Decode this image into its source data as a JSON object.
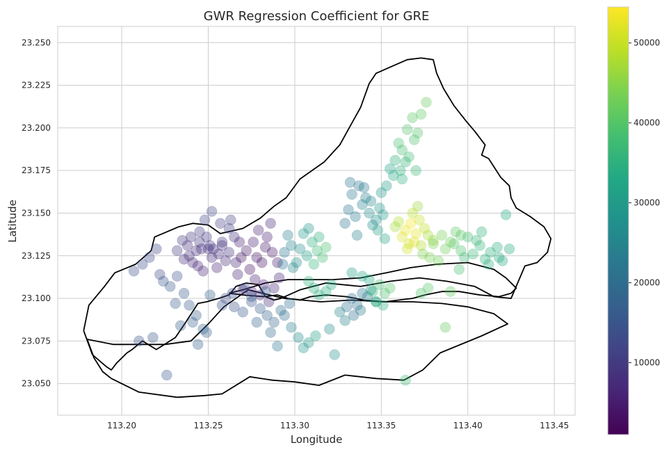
{
  "chart_data": {
    "type": "scatter",
    "title": "GWR Regression Coefficient for GRE",
    "xlabel": "Longitude",
    "ylabel": "Latitude",
    "xlim": [
      113.163,
      113.462
    ],
    "ylim": [
      23.0315,
      23.2595
    ],
    "xticks": [
      "113.20",
      "113.25",
      "113.30",
      "113.35",
      "113.40",
      "113.45"
    ],
    "yticks": [
      "23.050",
      "23.075",
      "23.100",
      "23.125",
      "23.150",
      "23.175",
      "23.200",
      "23.225",
      "23.250"
    ],
    "grid": true,
    "colorbar": {
      "colormap": "viridis",
      "range": [
        1000,
        54500
      ],
      "ticks": [
        "10000",
        "20000",
        "30000",
        "40000",
        "50000"
      ]
    },
    "boundaries": [
      {
        "name": "outer",
        "lon": [
          113.178,
          113.183,
          113.191,
          113.194,
          113.197,
          113.203,
          113.206,
          113.212,
          113.22,
          113.231,
          113.237,
          113.244,
          113.249,
          113.256,
          113.262,
          113.266,
          113.272,
          113.279,
          113.283,
          113.288,
          113.292,
          113.303,
          113.318,
          113.338,
          113.355,
          113.372,
          113.388,
          113.404,
          113.415,
          113.425,
          113.433,
          113.44,
          113.446,
          113.448,
          113.444,
          113.436,
          113.428,
          113.425,
          113.424,
          113.419,
          113.412,
          113.408,
          113.41,
          113.404,
          113.399,
          113.392,
          113.386,
          113.382,
          113.38,
          113.373,
          113.365,
          113.356,
          113.347,
          113.343,
          113.338,
          113.332,
          113.326,
          113.317,
          113.303,
          113.295,
          113.288,
          113.28,
          113.27,
          113.257,
          113.25,
          113.241,
          113.233,
          113.226,
          113.219,
          113.217,
          113.208,
          113.196,
          113.19,
          113.181,
          113.178
        ],
        "lat": [
          23.081,
          23.067,
          23.06,
          23.058,
          23.062,
          23.068,
          23.07,
          23.075,
          23.07,
          23.077,
          23.086,
          23.097,
          23.098,
          23.1,
          23.102,
          23.107,
          23.109,
          23.108,
          23.101,
          23.099,
          23.1,
          23.105,
          23.109,
          23.107,
          23.11,
          23.112,
          23.11,
          23.107,
          23.101,
          23.1,
          23.119,
          23.121,
          23.127,
          23.135,
          23.142,
          23.148,
          23.153,
          23.159,
          23.166,
          23.171,
          23.182,
          23.184,
          23.19,
          23.198,
          23.204,
          23.213,
          23.223,
          23.232,
          23.24,
          23.241,
          23.24,
          23.236,
          23.232,
          23.226,
          23.212,
          23.201,
          23.19,
          23.18,
          23.17,
          23.159,
          23.154,
          23.147,
          23.141,
          23.138,
          23.143,
          23.144,
          23.142,
          23.139,
          23.136,
          23.128,
          23.12,
          23.115,
          23.107,
          23.096,
          23.081
        ]
      },
      {
        "name": "south",
        "lon": [
          113.18,
          113.184,
          113.189,
          113.194,
          113.21,
          113.232,
          113.248,
          113.258,
          113.274,
          113.287,
          113.3,
          113.314,
          113.329,
          113.347,
          113.363,
          113.374,
          113.384,
          113.408,
          113.423,
          113.415,
          113.4,
          113.385,
          113.368,
          113.351,
          113.333,
          113.315,
          113.294,
          113.273,
          113.259,
          113.25,
          113.24,
          113.225,
          113.208,
          113.195,
          113.18
        ],
        "lat": [
          23.076,
          23.065,
          23.057,
          23.053,
          23.045,
          23.042,
          23.043,
          23.044,
          23.054,
          23.052,
          23.051,
          23.049,
          23.055,
          23.053,
          23.052,
          23.058,
          23.068,
          23.078,
          23.085,
          23.091,
          23.095,
          23.097,
          23.098,
          23.098,
          23.099,
          23.098,
          23.1,
          23.105,
          23.095,
          23.085,
          23.075,
          23.073,
          23.073,
          23.073,
          23.076
        ]
      },
      {
        "name": "inner",
        "lon": [
          113.262,
          113.27,
          113.283,
          113.296,
          113.309,
          113.322,
          113.338,
          113.353,
          113.367,
          113.382,
          113.4,
          113.415,
          113.422,
          113.428,
          113.425,
          113.418,
          113.407,
          113.395,
          113.385,
          113.375,
          113.368,
          113.36,
          113.352,
          113.34,
          113.33,
          113.318,
          113.309,
          113.303,
          113.296,
          113.29,
          113.282,
          113.27,
          113.262
        ],
        "lat": [
          23.103,
          23.105,
          23.109,
          23.111,
          23.111,
          23.111,
          23.112,
          23.115,
          23.118,
          23.12,
          23.121,
          23.117,
          23.112,
          23.106,
          23.103,
          23.101,
          23.102,
          23.104,
          23.104,
          23.102,
          23.1,
          23.099,
          23.098,
          23.099,
          23.101,
          23.102,
          23.101,
          23.099,
          23.1,
          23.102,
          23.101,
          23.102,
          23.103
        ]
      }
    ],
    "series": [
      {
        "x": [
          113.246,
          113.252,
          113.258,
          113.262,
          113.249,
          113.255,
          113.241,
          113.245,
          113.251,
          113.26,
          113.257,
          113.248,
          113.243,
          113.253,
          113.265,
          113.238,
          113.236,
          113.244,
          113.256,
          113.262,
          113.24,
          113.247,
          113.252,
          113.258,
          113.25,
          113.245,
          113.235,
          113.232,
          113.266,
          113.263,
          113.239
        ],
        "y": [
          23.129,
          23.124,
          23.133,
          23.127,
          23.136,
          23.118,
          23.121,
          23.139,
          23.131,
          23.122,
          23.144,
          23.146,
          23.128,
          23.129,
          23.136,
          23.131,
          23.123,
          23.119,
          23.126,
          23.141,
          23.136,
          23.116,
          23.151,
          23.131,
          23.129,
          23.133,
          23.134,
          23.128,
          23.121,
          23.146,
          23.125
        ],
        "values": [
          8000,
          7500,
          9000,
          8500,
          10000,
          6500,
          7000,
          10500,
          9500,
          7800,
          11000,
          12000,
          8200,
          8800,
          9200,
          8600,
          7400,
          6800,
          8100,
          10200,
          9300,
          6600,
          12500,
          8900,
          8400,
          9100,
          9600,
          9800,
          7100,
          11200,
          8300
        ]
      },
      {
        "x": [
          113.272,
          113.278,
          113.283,
          113.287,
          113.276,
          113.281,
          113.269,
          113.284,
          113.29,
          113.274,
          113.279,
          113.286,
          113.268,
          113.282,
          113.277,
          113.291,
          113.27,
          113.288,
          113.275,
          113.285,
          113.28,
          113.267
        ],
        "y": [
          23.128,
          23.124,
          23.13,
          23.127,
          23.133,
          23.121,
          23.124,
          23.136,
          23.121,
          23.117,
          23.14,
          23.144,
          23.133,
          23.108,
          23.111,
          23.112,
          23.105,
          23.106,
          23.104,
          23.098,
          23.102,
          23.114
        ],
        "values": [
          4500,
          4000,
          5000,
          4800,
          5500,
          3800,
          4200,
          6000,
          5200,
          3600,
          6500,
          7000,
          5800,
          6200,
          6000,
          6600,
          6400,
          6800,
          6300,
          7200,
          6900,
          6100
        ]
      },
      {
        "x": [
          113.294,
          113.298,
          113.303,
          113.307,
          113.31,
          113.296,
          113.301,
          113.313,
          113.305,
          113.311,
          113.316,
          113.299,
          113.308,
          113.314,
          113.293,
          113.318
        ],
        "y": [
          23.127,
          23.131,
          23.129,
          23.125,
          23.133,
          23.137,
          23.121,
          23.128,
          23.138,
          23.12,
          23.124,
          23.118,
          23.141,
          23.136,
          23.12,
          23.13
        ],
        "values": [
          22000,
          25000,
          28000,
          31000,
          34000,
          24000,
          27000,
          37000,
          30000,
          36000,
          38000,
          26000,
          29000,
          35000,
          21000,
          39000
        ]
      },
      {
        "x": [
          113.26,
          113.265,
          113.27,
          113.275,
          113.28,
          113.284,
          113.288,
          113.292,
          113.297,
          113.264,
          113.271,
          113.278,
          113.286,
          113.29,
          113.298,
          113.302,
          113.305,
          113.308,
          113.312,
          113.258,
          113.275,
          113.283,
          113.294
        ],
        "y": [
          23.1,
          23.095,
          23.092,
          23.098,
          23.094,
          23.09,
          23.086,
          23.093,
          23.097,
          23.103,
          23.106,
          23.086,
          23.08,
          23.072,
          23.083,
          23.077,
          23.071,
          23.074,
          23.078,
          23.096,
          23.101,
          23.104,
          23.09
        ],
        "values": [
          13000,
          14000,
          15000,
          14500,
          16000,
          17000,
          18000,
          19000,
          20000,
          13500,
          14200,
          17500,
          19500,
          22000,
          24000,
          27000,
          28500,
          29500,
          30500,
          13800,
          15200,
          16800,
          20500
        ]
      },
      {
        "x": [
          113.331,
          113.335,
          113.339,
          113.343,
          113.347,
          113.351,
          113.333,
          113.337,
          113.341,
          113.345,
          113.349,
          113.329,
          113.336,
          113.344,
          113.34,
          113.332,
          113.348,
          113.352
        ],
        "y": [
          23.152,
          23.148,
          23.155,
          23.15,
          23.146,
          23.149,
          23.161,
          23.166,
          23.159,
          23.143,
          23.153,
          23.144,
          23.137,
          23.157,
          23.165,
          23.168,
          23.14,
          23.135
        ],
        "values": [
          22000,
          23000,
          24500,
          26000,
          28000,
          30000,
          22500,
          21500,
          23500,
          27000,
          29000,
          21000,
          24000,
          25500,
          23200,
          22200,
          31000,
          32000
        ]
      },
      {
        "x": [
          113.333,
          113.336,
          113.339,
          113.33,
          113.334,
          113.338,
          113.342,
          113.326,
          113.329,
          113.344,
          113.347,
          113.32,
          113.323
        ],
        "y": [
          23.1,
          23.096,
          23.103,
          23.095,
          23.09,
          23.093,
          23.101,
          23.092,
          23.087,
          23.105,
          23.098,
          23.082,
          23.067
        ],
        "values": [
          20000,
          21000,
          22000,
          21500,
          20500,
          23000,
          24000,
          25000,
          24500,
          28000,
          29500,
          27000,
          27500
        ]
      },
      {
        "x": [
          113.364,
          113.367,
          113.37,
          113.366,
          113.372,
          113.368,
          113.362,
          113.375,
          113.369,
          113.373,
          113.377,
          113.371,
          113.365,
          113.36,
          113.38,
          113.358
        ],
        "y": [
          23.14,
          23.144,
          23.138,
          23.132,
          23.146,
          23.15,
          23.136,
          23.141,
          23.133,
          23.131,
          23.137,
          23.154,
          23.129,
          23.145,
          23.134,
          23.142
        ],
        "values": [
          53000,
          54000,
          52500,
          51000,
          50000,
          49000,
          51500,
          49500,
          52000,
          48500,
          47500,
          46500,
          50500,
          48000,
          45500,
          47000
        ]
      },
      {
        "x": [
          113.392,
          113.396,
          113.4,
          113.403,
          113.407,
          113.41,
          113.413,
          113.417,
          113.42,
          113.424,
          113.398,
          113.405,
          113.412,
          113.418,
          113.422,
          113.395,
          113.408
        ],
        "y": [
          23.132,
          23.128,
          23.136,
          23.126,
          23.131,
          23.123,
          23.127,
          23.13,
          23.122,
          23.129,
          23.124,
          23.134,
          23.12,
          23.124,
          23.149,
          23.117,
          23.139
        ],
        "values": [
          40000,
          39000,
          38000,
          36500,
          36000,
          35000,
          34500,
          34000,
          33500,
          33000,
          37500,
          36200,
          34800,
          34200,
          33200,
          38500,
          35500
        ]
      },
      {
        "x": [
          113.353,
          113.357,
          113.361,
          113.364,
          113.366,
          113.362,
          113.36,
          113.369,
          113.371,
          113.373,
          113.376,
          113.368,
          113.365,
          113.37,
          113.358,
          113.355,
          113.362,
          113.35
        ],
        "y": [
          23.166,
          23.172,
          23.175,
          23.18,
          23.183,
          23.187,
          23.191,
          23.193,
          23.197,
          23.208,
          23.215,
          23.206,
          23.199,
          23.175,
          23.181,
          23.176,
          23.17,
          23.162
        ],
        "values": [
          30000,
          33000,
          35000,
          36000,
          37500,
          38000,
          38500,
          39000,
          40000,
          41000,
          41500,
          40500,
          39500,
          36500,
          34500,
          32000,
          34800,
          29000
        ]
      },
      {
        "x": [
          113.207,
          113.212,
          113.216,
          113.22,
          113.224,
          113.228,
          113.232,
          113.236,
          113.21,
          113.218,
          113.222,
          113.226,
          113.231,
          113.239,
          113.243,
          113.247,
          113.244,
          113.241,
          113.249,
          113.234,
          113.251
        ],
        "y": [
          23.116,
          23.12,
          23.124,
          23.129,
          23.11,
          23.107,
          23.113,
          23.103,
          23.075,
          23.077,
          23.114,
          23.055,
          23.097,
          23.096,
          23.09,
          23.082,
          23.073,
          23.086,
          23.08,
          23.084,
          23.102
        ],
        "values": [
          14000,
          13500,
          12800,
          12000,
          15000,
          15500,
          14500,
          16000,
          14800,
          15200,
          13000,
          15800,
          16200,
          16400,
          16600,
          17000,
          17200,
          16800,
          17400,
          16100,
          17600
        ]
      },
      {
        "x": [
          113.345,
          113.349,
          113.352,
          113.355,
          113.347,
          113.351,
          113.343,
          113.339,
          113.333,
          113.321,
          113.318,
          113.314,
          113.311,
          113.308
        ],
        "y": [
          23.104,
          23.108,
          23.103,
          23.106,
          23.098,
          23.096,
          23.111,
          23.113,
          23.115,
          23.108,
          23.104,
          23.102,
          23.106,
          23.11
        ],
        "values": [
          36000,
          38000,
          39000,
          40000,
          35000,
          34500,
          33000,
          32500,
          31000,
          33500,
          34000,
          34500,
          35000,
          35500
        ]
      },
      {
        "x": [
          113.374,
          113.378,
          113.385,
          113.39,
          113.393,
          113.396,
          113.387,
          113.38,
          113.383,
          113.387,
          113.364,
          113.373,
          113.377,
          113.39
        ],
        "y": [
          23.126,
          23.124,
          23.137,
          23.133,
          23.139,
          23.137,
          23.129,
          23.132,
          23.122,
          23.083,
          23.052,
          23.103,
          23.106,
          23.104
        ],
        "values": [
          44000,
          43500,
          43000,
          42000,
          41000,
          40500,
          42500,
          43800,
          42800,
          41500,
          37000,
          39500,
          40200,
          40800
        ]
      }
    ]
  }
}
